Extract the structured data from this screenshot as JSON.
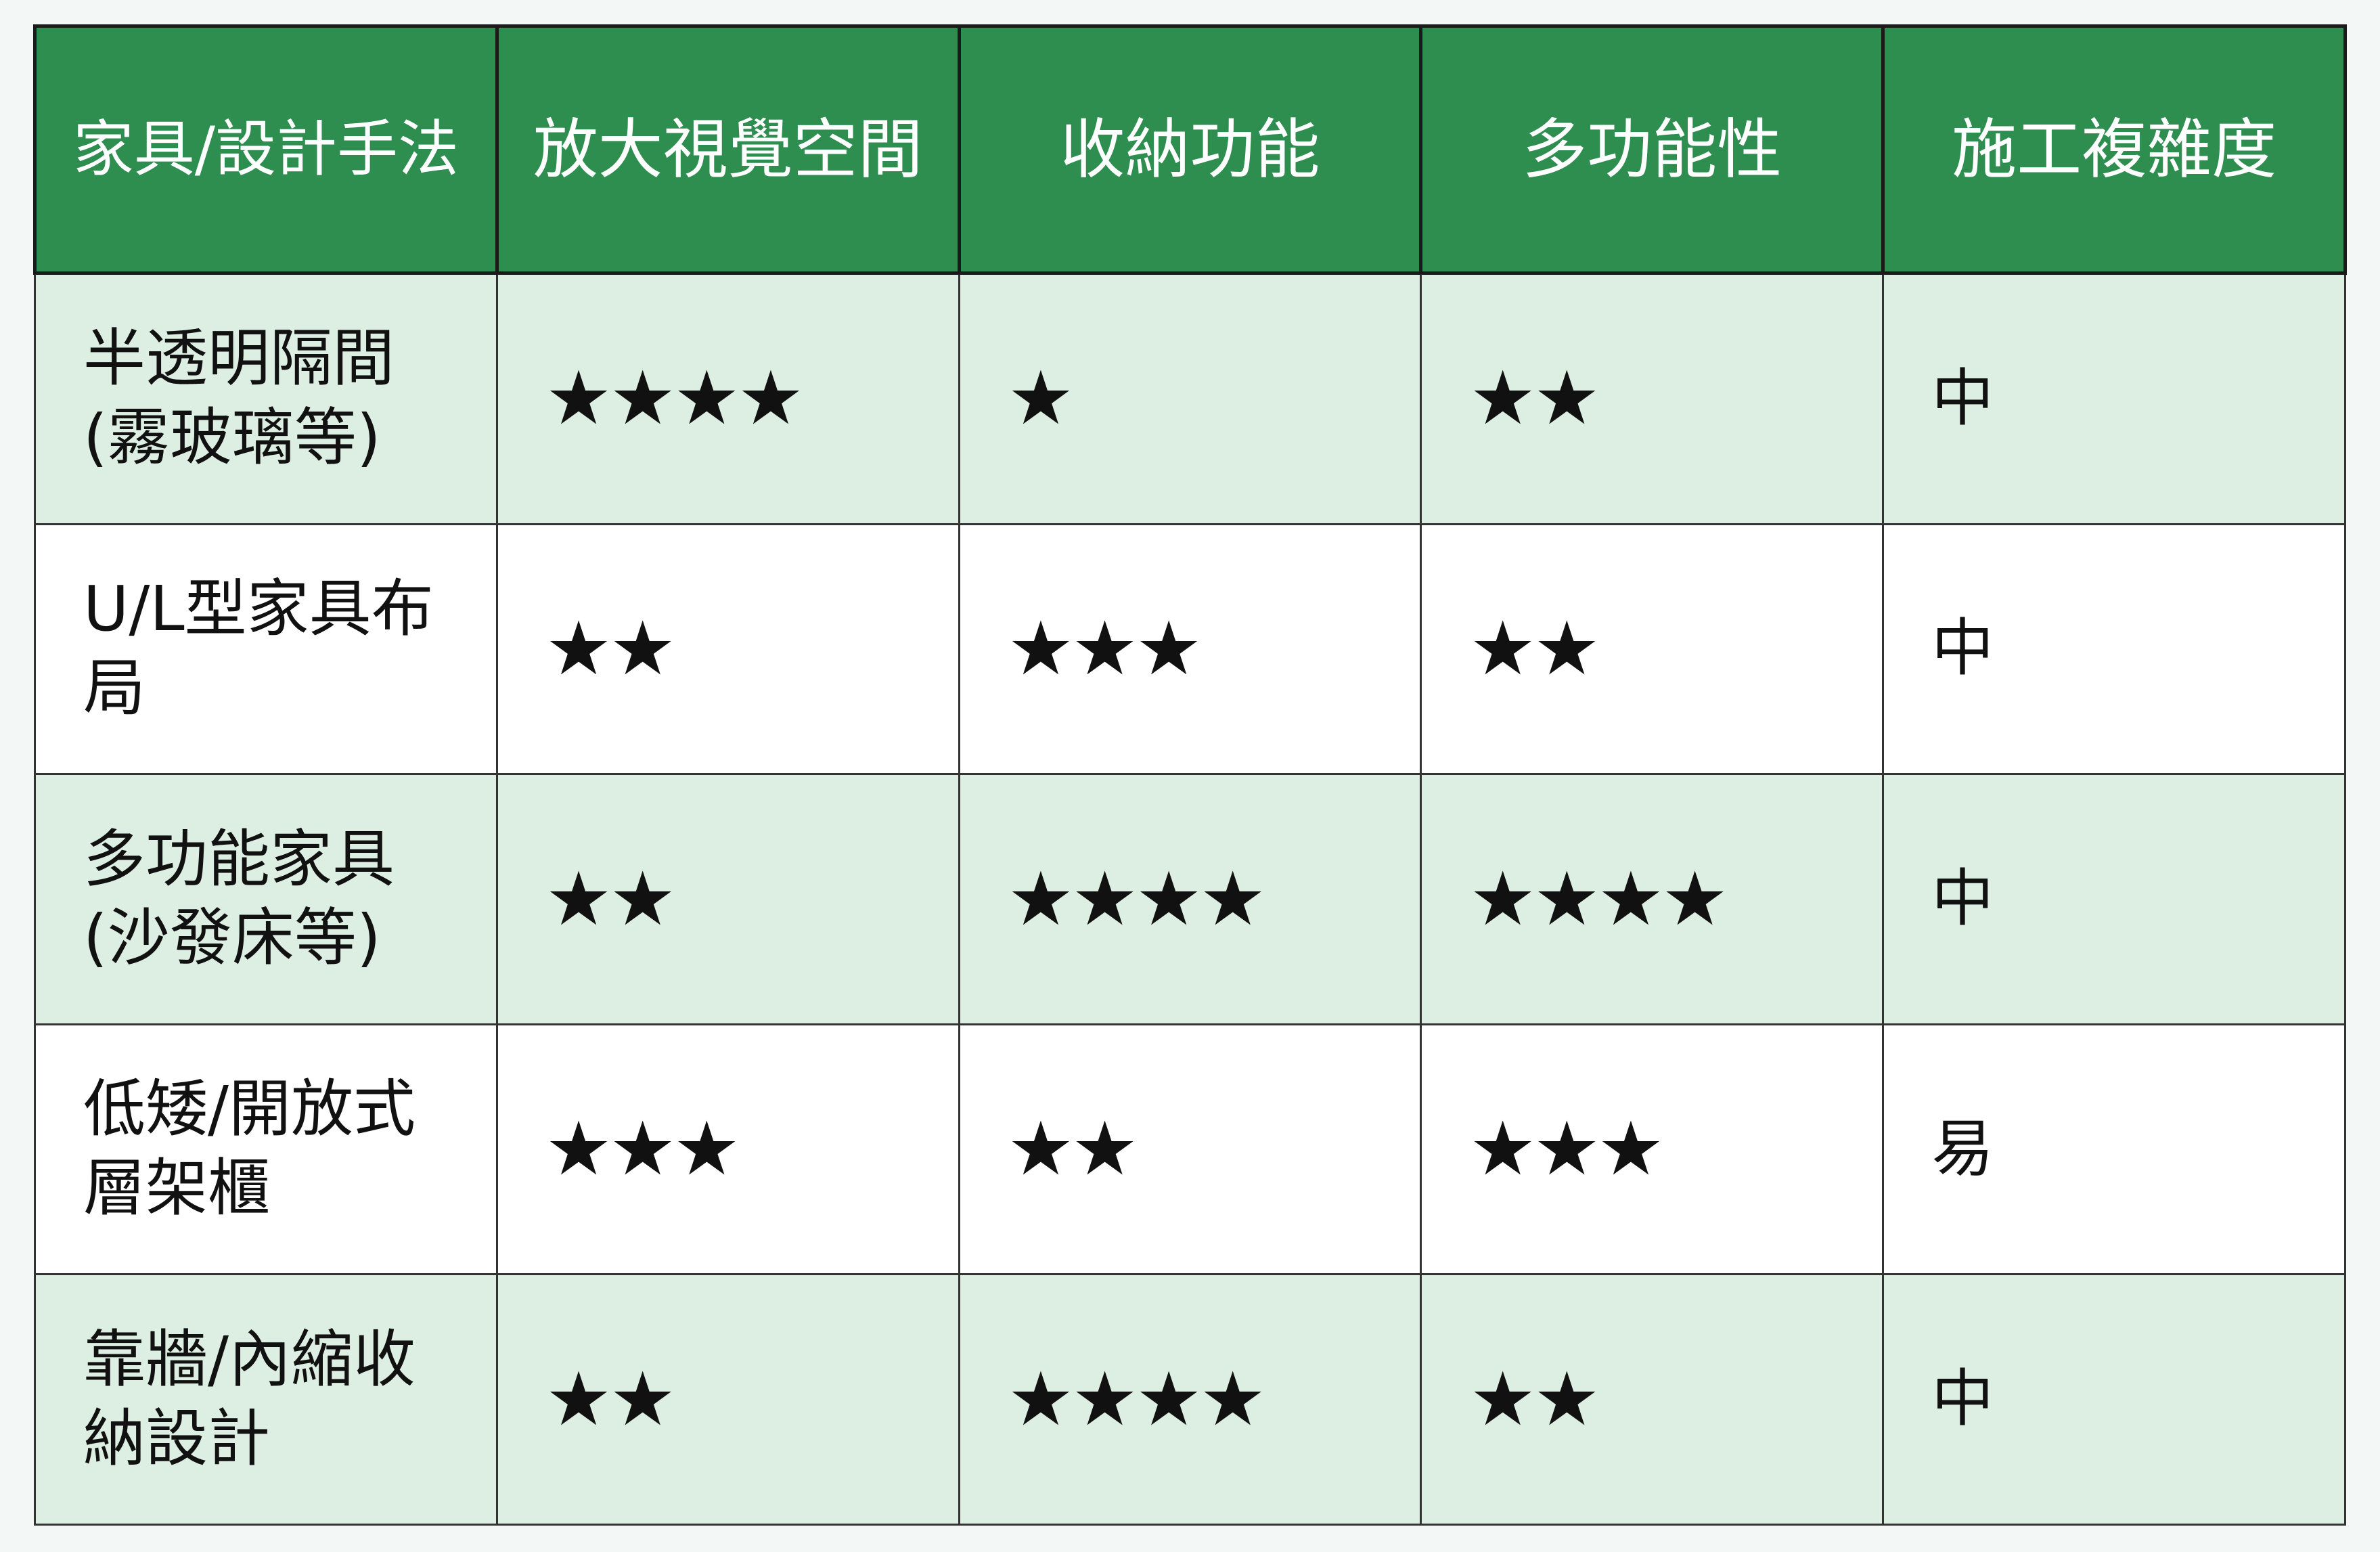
{
  "colors": {
    "header_bg": "#2e8e4f",
    "alt_row_bg": "#ddefe3",
    "page_bg": "#f3f7f5"
  },
  "headers": [
    "家具/設計手法",
    "放大視覺空間",
    "收納功能",
    "多功能性",
    "施工複雜度"
  ],
  "rows": [
    {
      "name": "半透明隔間(霧玻璃等)",
      "visual": "★★★★",
      "storage": "★",
      "multi": "★★",
      "complexity": "中",
      "ratings": [
        4,
        1,
        2
      ]
    },
    {
      "name": "U/L型家具布局",
      "visual": "★★",
      "storage": "★★★",
      "multi": "★★",
      "complexity": "中",
      "ratings": [
        2,
        3,
        2
      ]
    },
    {
      "name": "多功能家具(沙發床等)",
      "visual": "★★",
      "storage": "★★★★",
      "multi": "★★★★",
      "complexity": "中",
      "ratings": [
        2,
        4,
        4
      ]
    },
    {
      "name": "低矮/開放式層架櫃",
      "visual": "★★★",
      "storage": "★★",
      "multi": "★★★",
      "complexity": "易",
      "ratings": [
        3,
        2,
        3
      ]
    },
    {
      "name": "靠牆/內縮收納設計",
      "visual": "★★",
      "storage": "★★★★",
      "multi": "★★",
      "complexity": "中",
      "ratings": [
        2,
        4,
        2
      ]
    }
  ]
}
